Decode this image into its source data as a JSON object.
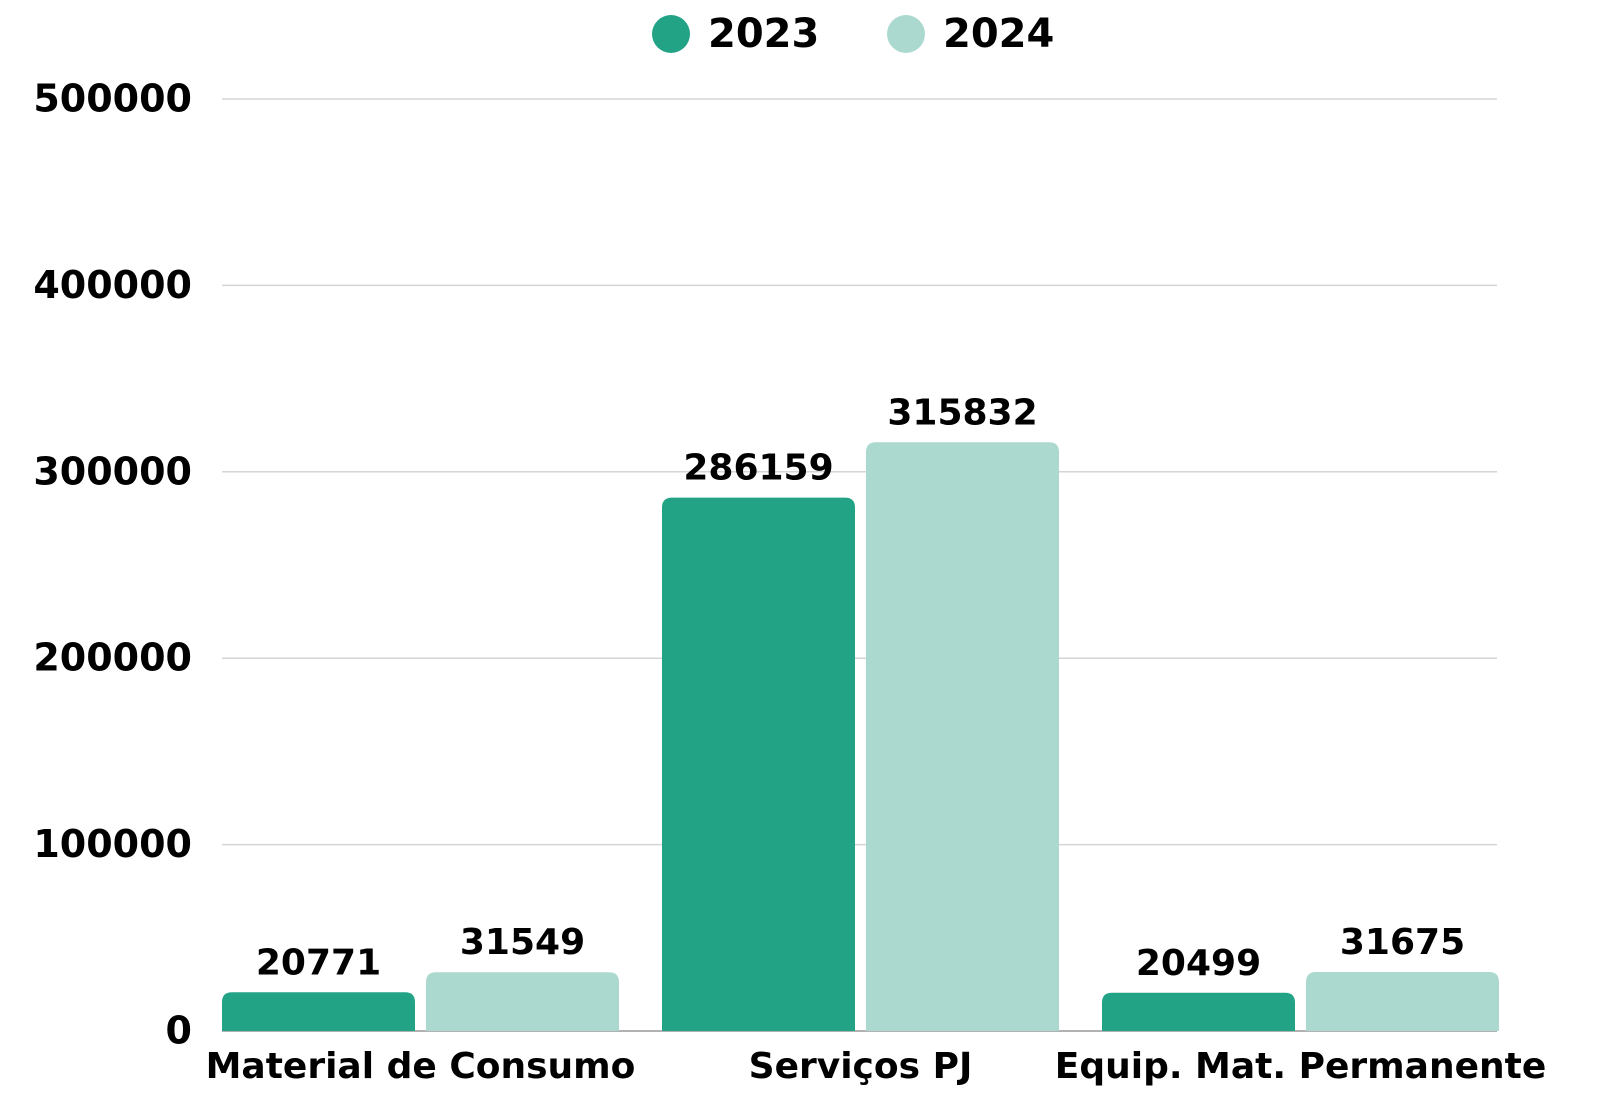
{
  "chart_data": {
    "type": "bar",
    "categories": [
      "Material de Consumo",
      "Serviços PJ",
      "Equip. Mat. Permanente"
    ],
    "series": [
      {
        "name": "2023",
        "color": "#22a386",
        "values": [
          20771,
          286159,
          20499
        ]
      },
      {
        "name": "2024",
        "color": "#acd9cf",
        "values": [
          31549,
          315832,
          31675
        ]
      }
    ],
    "ylim": [
      0,
      500000
    ],
    "yticks": [
      0,
      100000,
      200000,
      300000,
      400000,
      500000
    ],
    "grid": true,
    "legend": "top"
  }
}
